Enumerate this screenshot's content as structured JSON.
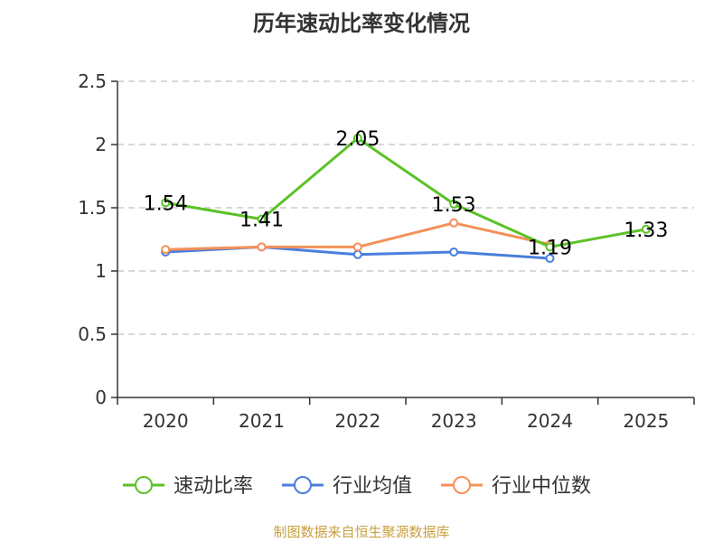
{
  "chart_data": {
    "type": "line",
    "title": "历年速动比率变化情况",
    "categories": [
      "2020",
      "2021",
      "2022",
      "2023",
      "2024",
      "2025"
    ],
    "ylim": [
      0,
      2.5
    ],
    "yticks": [
      "0",
      "0.5",
      "1",
      "1.5",
      "2",
      "2.5"
    ],
    "grid": true,
    "legend_position": "bottom",
    "series": [
      {
        "name": "速动比率",
        "color": "#5bc227",
        "values": [
          1.54,
          1.41,
          2.05,
          1.53,
          1.19,
          1.33
        ],
        "labels": [
          "1.54",
          "1.41",
          "2.05",
          "1.53",
          "1.19",
          "1.33"
        ]
      },
      {
        "name": "行业均值",
        "color": "#4a7fdb",
        "values": [
          1.15,
          1.19,
          1.13,
          1.15,
          1.1,
          null
        ]
      },
      {
        "name": "行业中位数",
        "color": "#f5905a",
        "values": [
          1.17,
          1.19,
          1.19,
          1.38,
          1.21,
          null
        ]
      }
    ]
  },
  "source": "制图数据来自恒生聚源数据库"
}
